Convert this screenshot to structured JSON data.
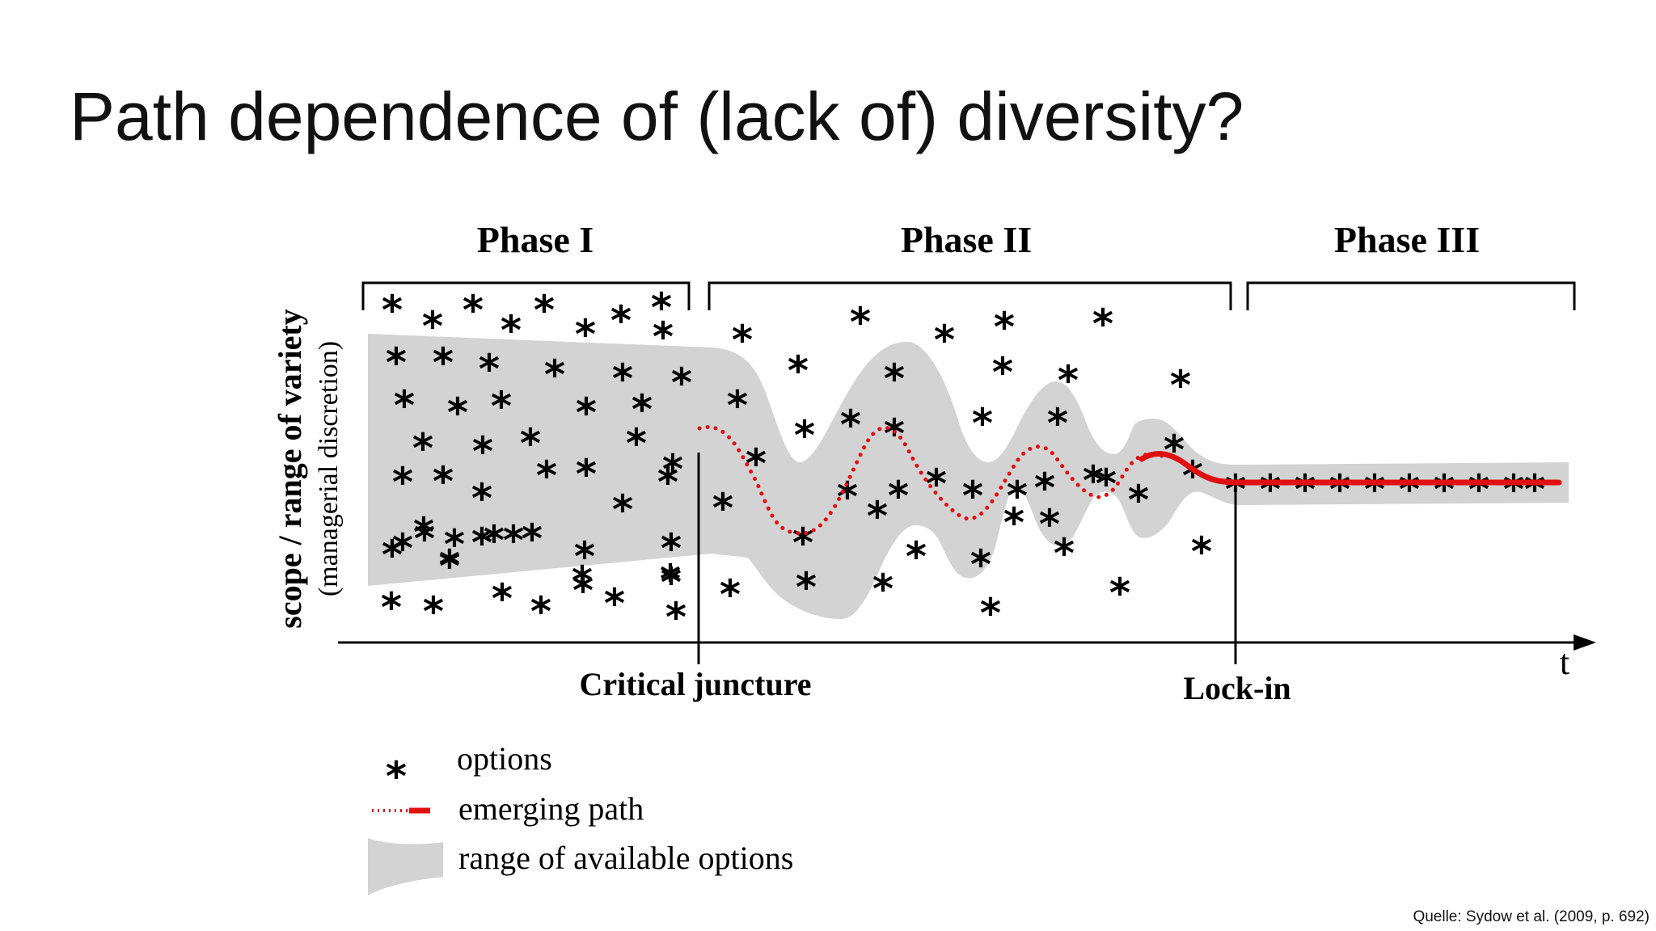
{
  "slide": {
    "title": "Path dependence of (lack of) diversity?",
    "citation": "Quelle: Sydow et al. (2009, p. 692)"
  },
  "figure": {
    "phases": [
      "Phase I",
      "Phase II",
      "Phase III"
    ],
    "y_axis_label": "scope / range of variety",
    "y_axis_sublabel": "(managerial discretion)",
    "x_axis_label": "t",
    "markers": {
      "critical_juncture": "Critical juncture",
      "lock_in": "Lock-in"
    },
    "option_symbol": "*",
    "legend": [
      {
        "symbol": "star",
        "label": "options"
      },
      {
        "symbol": "path",
        "label": "emerging path"
      },
      {
        "symbol": "range",
        "label": "range of available options"
      }
    ],
    "colors": {
      "path": "#e01010",
      "range": "#d3d3d3",
      "ink": "#000000"
    }
  }
}
